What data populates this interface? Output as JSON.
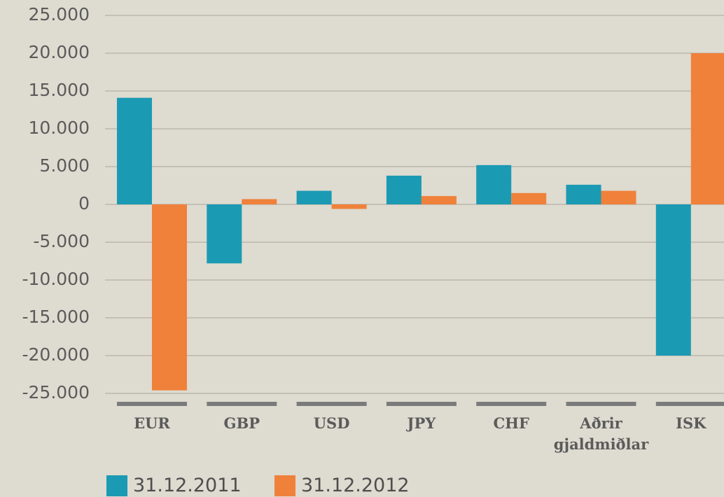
{
  "chart_data": {
    "type": "bar",
    "categories": [
      "EUR",
      "GBP",
      "USD",
      "JPY",
      "CHF",
      "Aðrir gjaldmiðlar",
      "ISK"
    ],
    "series": [
      {
        "name": "31.12.2011",
        "color": "#1b9ab3",
        "values": [
          14100,
          -7800,
          1800,
          3800,
          5200,
          2600,
          -20000
        ]
      },
      {
        "name": "31.12.2012",
        "color": "#f0813b",
        "values": [
          -24600,
          700,
          -600,
          1100,
          1500,
          1800,
          20000
        ]
      }
    ],
    "ylim": [
      -25000,
      25000
    ],
    "yticks": [
      {
        "value": -25000,
        "label": "-25.000"
      },
      {
        "value": -20000,
        "label": "-20.000"
      },
      {
        "value": -15000,
        "label": "-15.000"
      },
      {
        "value": -10000,
        "label": "-10.000"
      },
      {
        "value": -5000,
        "label": "-5.000"
      },
      0,
      {
        "value": 5000,
        "label": "5.000"
      },
      {
        "value": 10000,
        "label": "10.000"
      },
      {
        "value": 15000,
        "label": "15.000"
      },
      {
        "value": 20000,
        "label": "20.000"
      },
      {
        "value": 25000,
        "label": "25.000"
      }
    ],
    "grid": true
  }
}
